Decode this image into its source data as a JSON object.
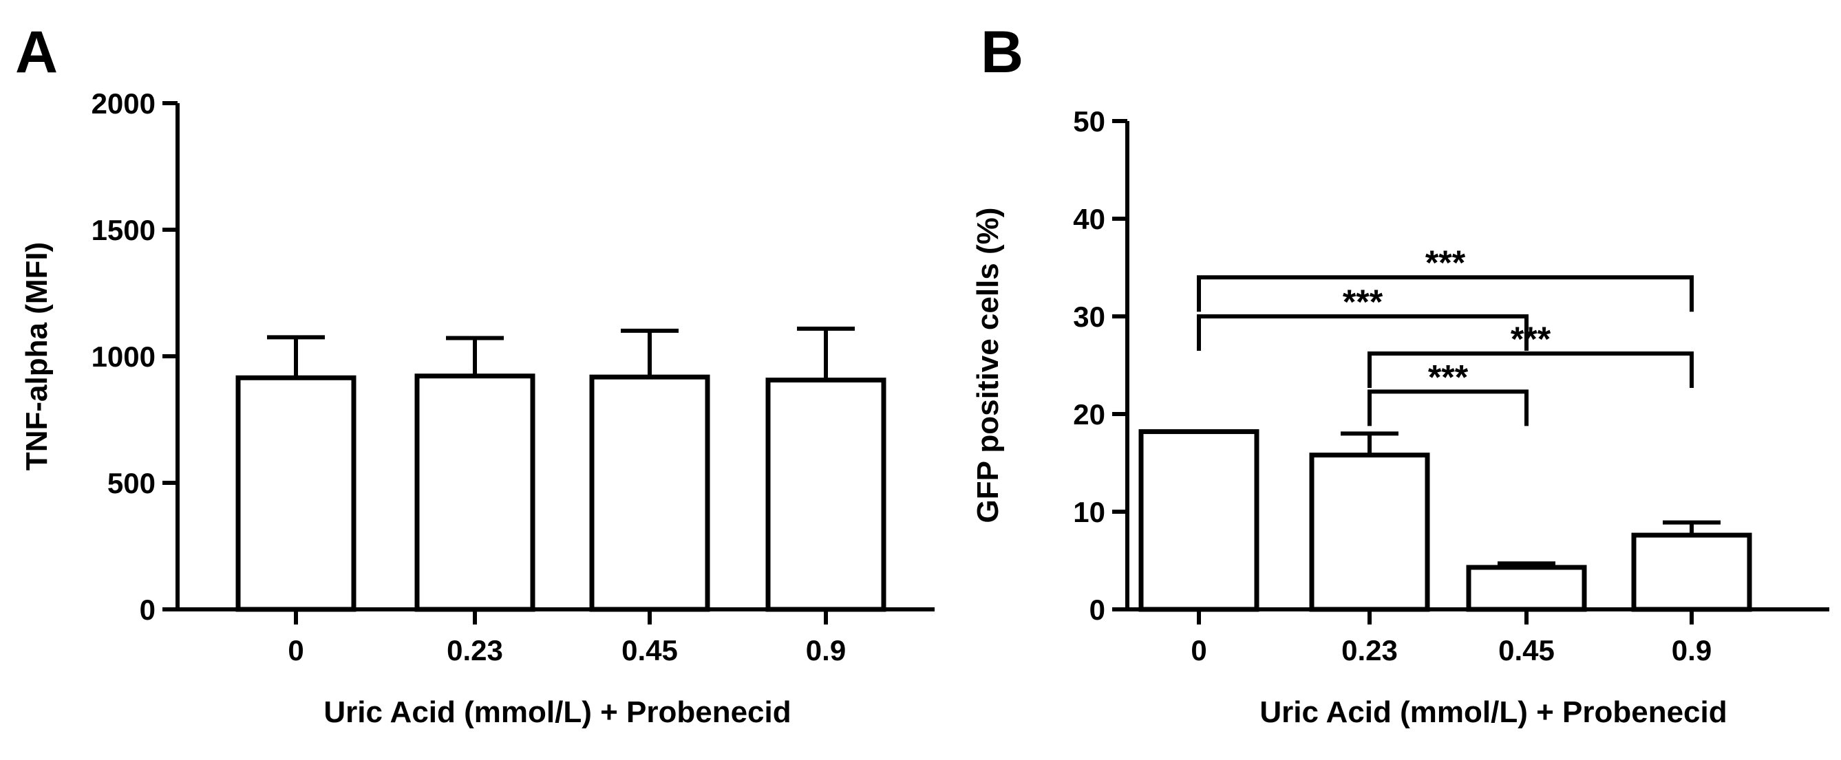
{
  "chart_data": [
    {
      "panel_label": "A",
      "type": "bar",
      "categories": [
        "0",
        "0.23",
        "0.45",
        "0.9"
      ],
      "values": [
        915,
        922,
        918,
        906
      ],
      "errors": [
        160,
        150,
        183,
        203
      ],
      "ylabel": "TNF-alpha (MFI)",
      "xlabel": "Uric Acid (mmol/L) + Probenecid",
      "ylim": [
        0,
        2000
      ],
      "yticks": [
        0,
        500,
        1000,
        1500,
        2000
      ],
      "grid": false,
      "significance": []
    },
    {
      "panel_label": "B",
      "type": "bar",
      "categories": [
        "0",
        "0.23",
        "0.45",
        "0.9"
      ],
      "values": [
        18.2,
        15.8,
        4.3,
        7.6
      ],
      "errors": [
        0,
        2.2,
        0.4,
        1.3
      ],
      "ylabel": "GFP positive cells (%)",
      "xlabel": "Uric Acid (mmol/L) + Probenecid",
      "ylim": [
        0,
        50
      ],
      "yticks": [
        0,
        10,
        20,
        30,
        40,
        50
      ],
      "grid": false,
      "significance": [
        {
          "from": 0,
          "to": 3,
          "label": "***",
          "y": 34.0
        },
        {
          "from": 0,
          "to": 2,
          "label": "***",
          "y": 30.0
        },
        {
          "from": 1,
          "to": 3,
          "label": "***",
          "y": 26.2
        },
        {
          "from": 1,
          "to": 2,
          "label": "***",
          "y": 22.3
        }
      ]
    }
  ]
}
